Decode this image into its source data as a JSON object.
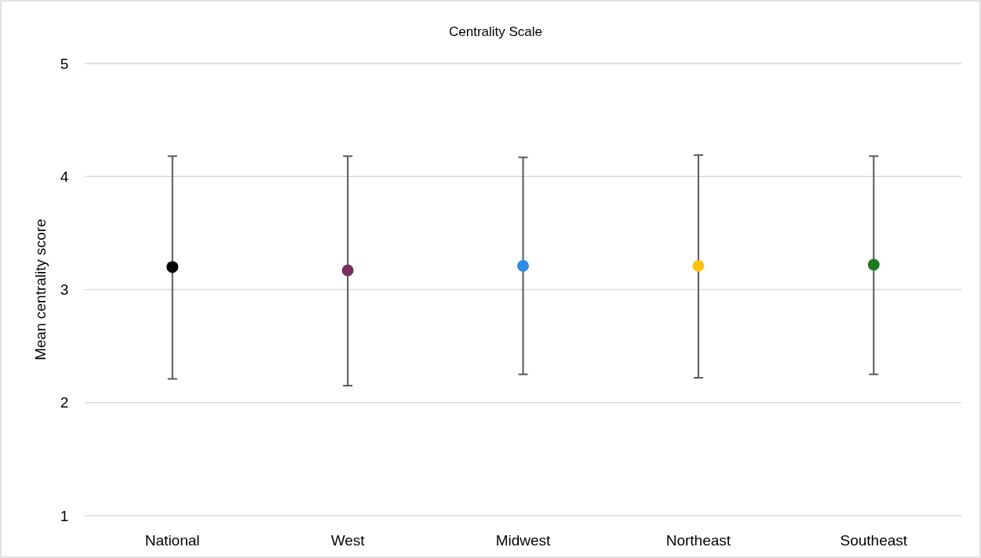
{
  "chart_data": {
    "type": "scatter",
    "title": "Centrality Scale",
    "ylabel": "Mean centrality score",
    "categories": [
      "National",
      "West",
      "Midwest",
      "Northeast",
      "Southeast"
    ],
    "values": [
      3.2,
      3.17,
      3.21,
      3.21,
      3.22
    ],
    "colors": [
      "#000000",
      "#7b2e62",
      "#2e8de4",
      "#ffc20e",
      "#1b7a1b"
    ],
    "errors": [
      [
        2.21,
        4.18
      ],
      [
        2.15,
        4.18
      ],
      [
        2.25,
        4.17
      ],
      [
        2.22,
        4.19
      ],
      [
        2.25,
        4.18
      ]
    ],
    "ylim": [
      1,
      5
    ],
    "yticks": [
      1,
      2,
      3,
      4,
      5
    ],
    "grid": "y",
    "marker": "circle"
  }
}
